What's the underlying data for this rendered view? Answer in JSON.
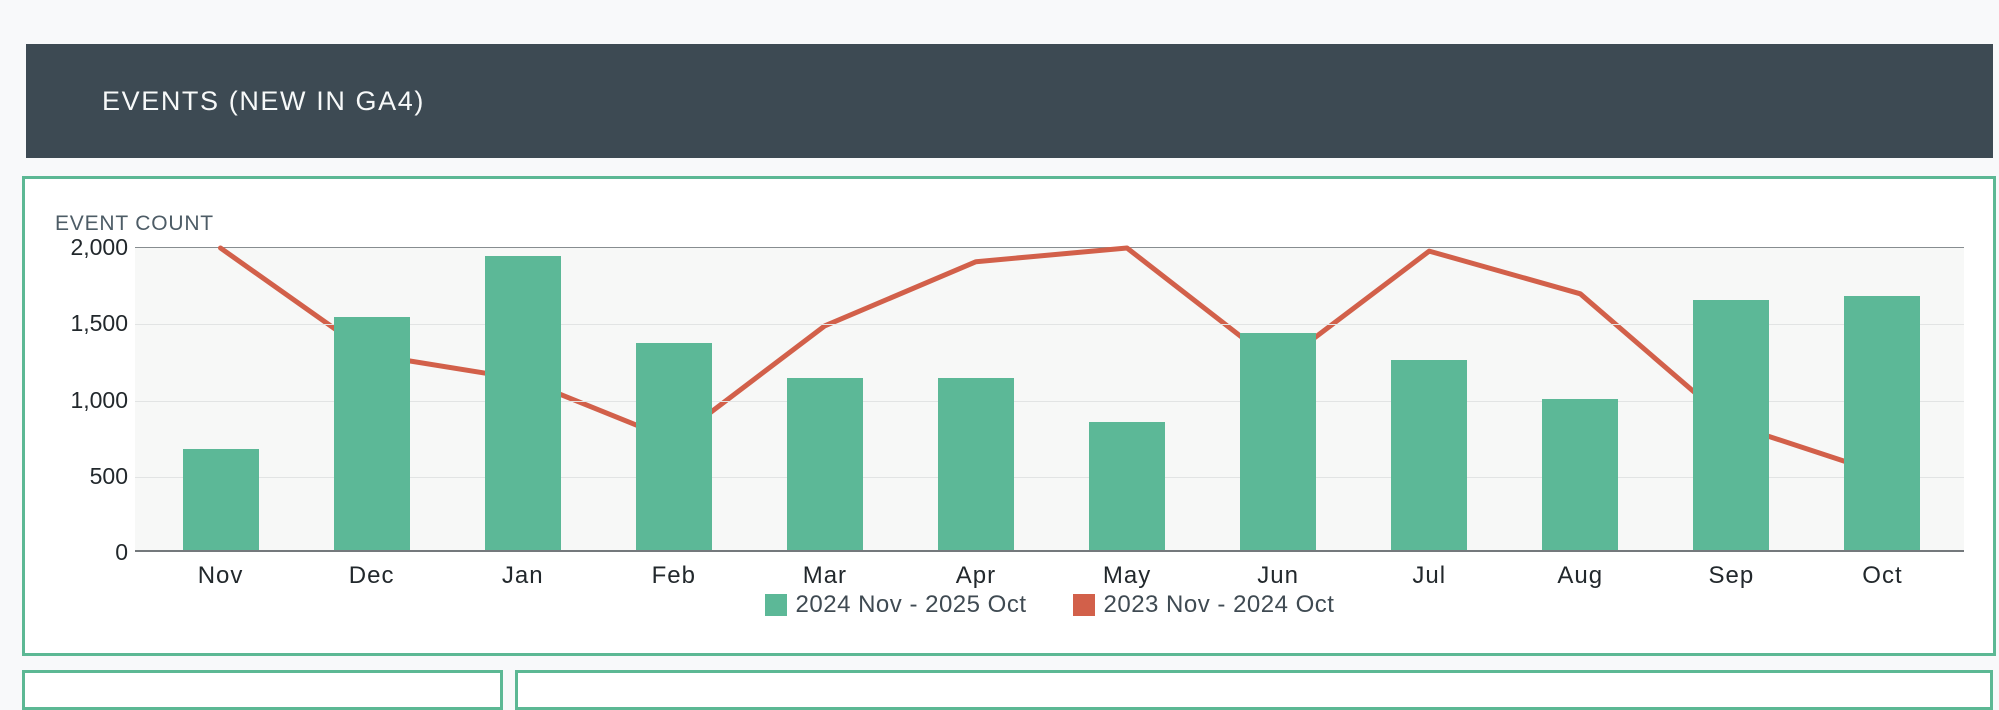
{
  "header": {
    "title": "EVENTS (NEW IN GA4)"
  },
  "chart_data": {
    "type": "bar",
    "subtype": "bar-with-line-overlay",
    "axis_title": "EVENT COUNT",
    "categories": [
      "Nov",
      "Dec",
      "Jan",
      "Feb",
      "Mar",
      "Apr",
      "May",
      "Jun",
      "Jul",
      "Aug",
      "Sep",
      "Oct"
    ],
    "series": [
      {
        "name": "2024 Nov - 2025 Oct",
        "type": "bar",
        "color": "#5cb897",
        "values": [
          665,
          1530,
          1930,
          1355,
          1130,
          1130,
          840,
          1420,
          1245,
          990,
          1640,
          1665
        ]
      },
      {
        "name": "2023 Nov - 2024 Oct",
        "type": "line",
        "color": "#d2604a",
        "values": [
          2000,
          1300,
          1140,
          740,
          1490,
          1910,
          2000,
          1230,
          1980,
          1700,
          845,
          520
        ]
      }
    ],
    "y_tick_labels": [
      "2,000",
      "1,500",
      "1,000",
      "500",
      "0"
    ],
    "y_tick_values": [
      2000,
      1500,
      1000,
      500,
      0
    ],
    "ylim": [
      0,
      2000
    ],
    "grid": true,
    "legend_position": "bottom-center"
  },
  "theme": {
    "header_bg": "#3d4a53",
    "header_text": "#f7f9f9",
    "panel_border": "#5cb894",
    "bar_green": "#5cb897",
    "line_red": "#d2604a",
    "page_bg": "#f8f9fa"
  }
}
